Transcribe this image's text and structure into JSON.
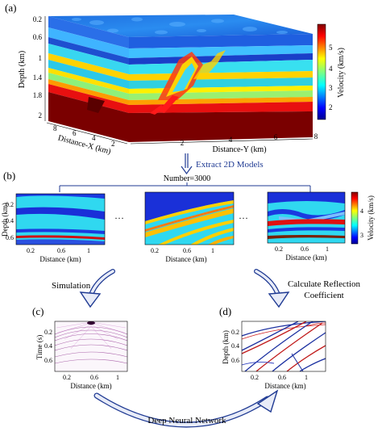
{
  "panels": {
    "a": "(a)",
    "b": "(b)",
    "c": "(c)",
    "d": "(d)"
  },
  "panel_a": {
    "depth_axis_label": "Depth (km)",
    "depth_ticks": [
      "0.2",
      "0.6",
      "1",
      "1.4",
      "1.8",
      "2"
    ],
    "distance_x_label": "Distance-X (km)",
    "distance_x_ticks": [
      "8",
      "6",
      "4",
      "2"
    ],
    "distance_y_label": "Distance-Y (km)",
    "distance_y_ticks": [
      "2",
      "4",
      "6",
      "8"
    ],
    "colorbar_label": "Velocity (km/s)",
    "colorbar_ticks": [
      "5",
      "4",
      "3",
      "2"
    ]
  },
  "flow": {
    "extract_label": "Extract 2D Models",
    "number_label": "Number=3000",
    "ellipsis": "···",
    "simulation_label": "Simulation",
    "reflection_line1": "Calculate Reflection",
    "reflection_line2": "Coefficient",
    "dnn_label": "Deep Neural Network"
  },
  "panel_b": {
    "depth_axis_label": "Depth (km)",
    "depth_ticks": [
      "0.2",
      "0.4",
      "0.6"
    ],
    "x_ticks": [
      "0.2",
      "0.6",
      "1"
    ],
    "x_label": "Distance (km)",
    "colorbar_label": "Velocity (km/s)",
    "colorbar_ticks": [
      "4",
      "3"
    ]
  },
  "panel_c": {
    "y_label": "Time (s)",
    "y_ticks": [
      "0.2",
      "0.4",
      "0.6"
    ],
    "x_ticks": [
      "0.2",
      "0.6",
      "1"
    ],
    "x_label": "Distance (km)"
  },
  "panel_d": {
    "y_label": "Depth (km)",
    "y_ticks": [
      "0.2",
      "0.4",
      "0.6"
    ],
    "x_ticks": [
      "0.2",
      "0.6",
      "1"
    ],
    "x_label": "Distance (km)"
  },
  "colors": {
    "arrow_blue": "#1f3a93",
    "jet_dark_blue": "#00008f",
    "jet_cyan": "#00d8ff",
    "jet_red": "#e01010",
    "jet_dark_red": "#7a0000"
  }
}
